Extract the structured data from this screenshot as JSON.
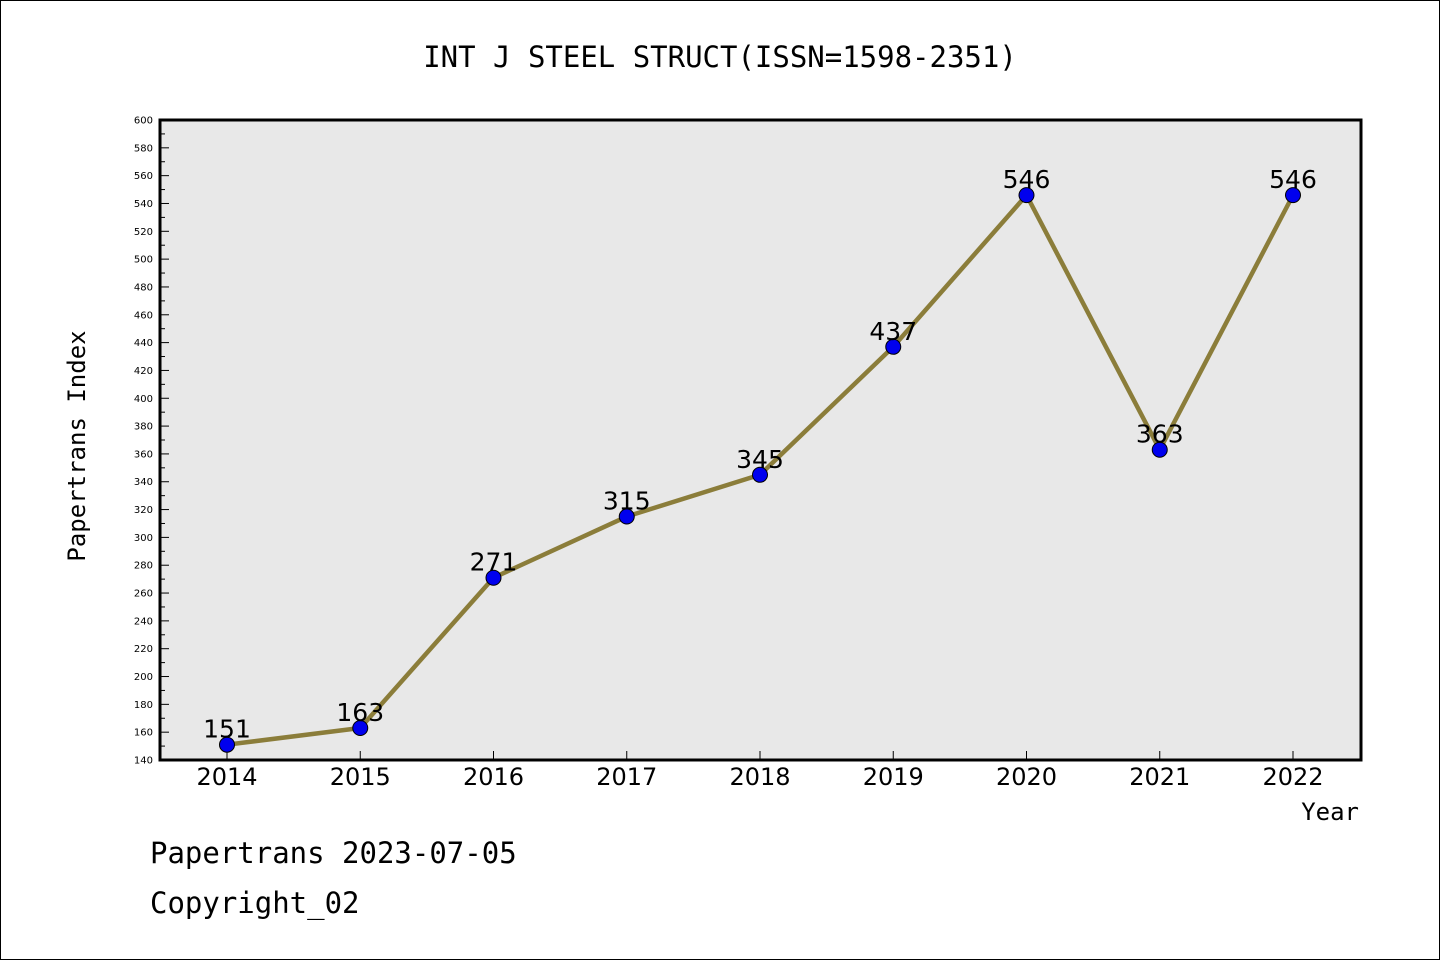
{
  "chart_data": {
    "type": "line",
    "title": "INT J STEEL STRUCT(ISSN=1598-2351)",
    "xlabel": "Year",
    "ylabel": "Papertrans Index",
    "categories": [
      "2014",
      "2015",
      "2016",
      "2017",
      "2018",
      "2019",
      "2020",
      "2021",
      "2022"
    ],
    "series": [
      {
        "values": [
          151,
          163,
          271,
          315,
          345,
          437,
          546,
          363,
          546
        ]
      }
    ],
    "data_labels": [
      "151",
      "163",
      "271",
      "315",
      "345",
      "437",
      "546",
      "363",
      "546"
    ],
    "ylim": [
      140,
      600
    ],
    "y_ticks": [
      "140",
      "160",
      "180",
      "200",
      "220",
      "240",
      "260",
      "280",
      "300",
      "320",
      "340",
      "360",
      "380",
      "400",
      "420",
      "440",
      "460",
      "480",
      "500",
      "520",
      "540",
      "560",
      "580",
      "600"
    ],
    "grid": false,
    "legend": "none",
    "colors": {
      "line": "#8B7D3A",
      "marker": "#0000EE",
      "plot_background": "#E8E8E8"
    }
  },
  "footer": {
    "line1": "Papertrans 2023-07-05",
    "line2": "Copyright_02"
  }
}
